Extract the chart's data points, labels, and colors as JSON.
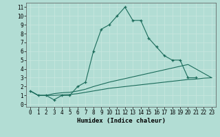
{
  "xlabel": "Humidex (Indice chaleur)",
  "background_color": "#b2ddd4",
  "grid_color": "#d4eeea",
  "line_color": "#1a6b5a",
  "x_ticks": [
    0,
    1,
    2,
    3,
    4,
    5,
    6,
    7,
    8,
    9,
    10,
    11,
    12,
    13,
    14,
    15,
    16,
    17,
    18,
    19,
    20,
    21,
    22,
    23
  ],
  "y_ticks": [
    0,
    1,
    2,
    3,
    4,
    5,
    6,
    7,
    8,
    9,
    10,
    11
  ],
  "xlim": [
    -0.5,
    23.5
  ],
  "ylim": [
    -0.3,
    11.5
  ],
  "curve1_x": [
    0,
    1,
    2,
    3,
    4,
    5,
    6,
    7,
    8,
    9,
    10,
    11,
    12,
    13,
    14,
    15,
    16,
    17,
    18,
    19,
    20,
    21
  ],
  "curve1_y": [
    1.5,
    1.0,
    1.0,
    0.5,
    1.0,
    1.0,
    2.0,
    2.5,
    6.0,
    8.5,
    9.0,
    10.0,
    11.0,
    9.5,
    9.5,
    7.5,
    6.5,
    5.5,
    5.0,
    5.0,
    3.0,
    3.0
  ],
  "curve2_x": [
    0,
    1,
    2,
    3,
    4,
    5,
    6,
    7,
    8,
    9,
    10,
    11,
    12,
    13,
    14,
    15,
    16,
    17,
    18,
    19,
    20,
    21,
    22,
    23
  ],
  "curve2_y": [
    1.5,
    1.0,
    1.0,
    1.2,
    1.3,
    1.35,
    1.5,
    1.7,
    2.0,
    2.25,
    2.5,
    2.7,
    2.9,
    3.1,
    3.3,
    3.5,
    3.7,
    3.9,
    4.1,
    4.3,
    4.5,
    4.0,
    3.5,
    3.0
  ],
  "curve3_x": [
    0,
    1,
    2,
    3,
    4,
    5,
    6,
    7,
    8,
    9,
    10,
    11,
    12,
    13,
    14,
    15,
    16,
    17,
    18,
    19,
    20,
    21,
    22,
    23
  ],
  "curve3_y": [
    1.5,
    1.0,
    1.0,
    1.0,
    1.05,
    1.1,
    1.2,
    1.35,
    1.5,
    1.65,
    1.8,
    1.9,
    2.0,
    2.1,
    2.2,
    2.3,
    2.4,
    2.5,
    2.6,
    2.7,
    2.8,
    2.85,
    2.95,
    3.0
  ],
  "tick_fontsize": 5.5,
  "xlabel_fontsize": 6.5,
  "linewidth": 0.8,
  "markersize": 3.0
}
